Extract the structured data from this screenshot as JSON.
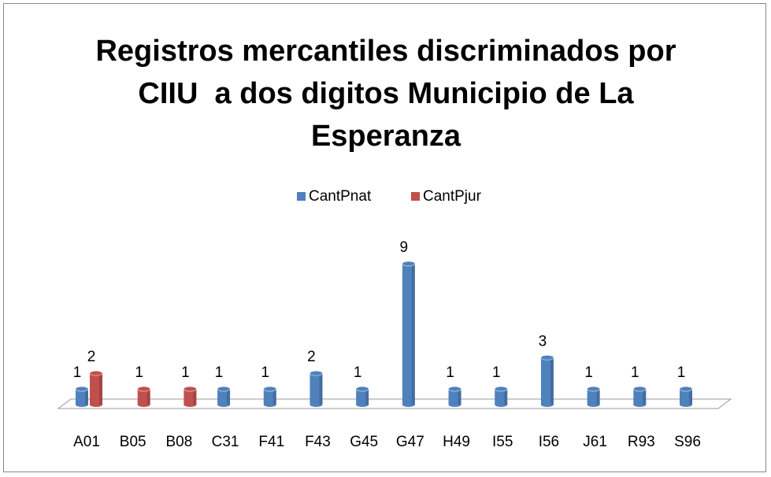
{
  "chart_data": {
    "type": "bar",
    "title": "Registros mercantiles discriminados por CIIU  a dos digitos Municipio de La Esperanza",
    "categories": [
      "A01",
      "B05",
      "B08",
      "C31",
      "F41",
      "F43",
      "G45",
      "G47",
      "H49",
      "I55",
      "I56",
      "J61",
      "R93",
      "S96"
    ],
    "series": [
      {
        "name": "CantPnat",
        "color": "#4f81bd",
        "values": [
          1,
          null,
          null,
          1,
          1,
          2,
          1,
          9,
          1,
          1,
          3,
          1,
          1,
          1
        ]
      },
      {
        "name": "CantPjur",
        "color": "#c0504d",
        "values": [
          2,
          1,
          1,
          null,
          null,
          null,
          null,
          null,
          null,
          null,
          null,
          null,
          null,
          null
        ]
      }
    ],
    "legend": "top"
  }
}
